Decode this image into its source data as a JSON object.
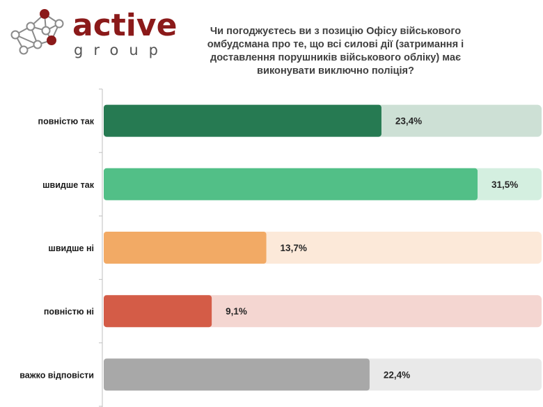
{
  "logo": {
    "word": "active",
    "sub": "group",
    "word_color": "#8b1a1a",
    "node_color": "#8b1a1a",
    "line_color": "#8a8a8a"
  },
  "chart_data": {
    "type": "bar",
    "orientation": "horizontal",
    "title": "Чи погоджуєтесь ви з позицію Офісу військового омбудсмана про те, що всі силові дії (затримання і доставлення порушників військового обліку) має виконувати виключно поліція?",
    "categories": [
      "повністю так",
      "швидше так",
      "швидше ні",
      "повністю ні",
      "важко відповісти"
    ],
    "values": [
      23.4,
      31.5,
      13.7,
      9.1,
      22.4
    ],
    "value_labels": [
      "23,4%",
      "31,5%",
      "13,7%",
      "9,1%",
      "22,4%"
    ],
    "bar_colors": [
      "#267a52",
      "#52bf87",
      "#f2aa65",
      "#d45c47",
      "#a8a8a8"
    ],
    "track_colors": [
      "#cde0d5",
      "#d4efe0",
      "#fce9d9",
      "#f4d6d1",
      "#e9e9e9"
    ],
    "xlim": [
      0,
      31.5
    ],
    "xlabel": "",
    "ylabel": "",
    "grid": false,
    "legend": "none"
  }
}
